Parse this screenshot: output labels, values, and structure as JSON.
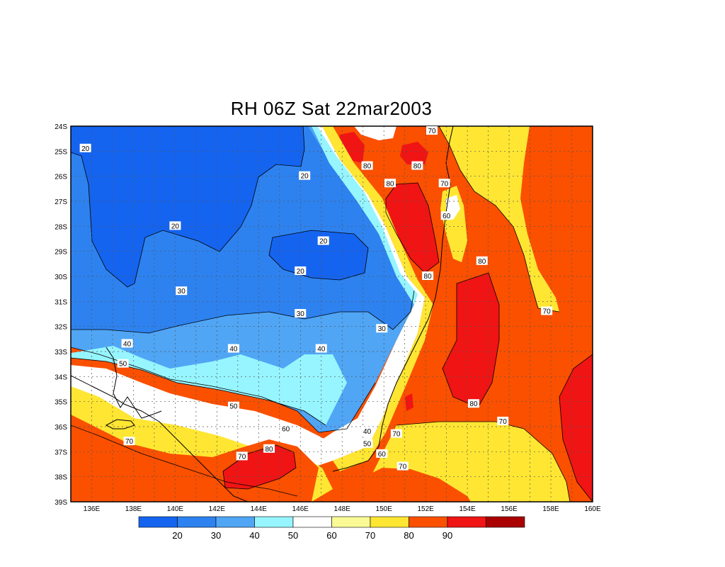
{
  "title": "RH 06Z Sat 22mar2003",
  "lat_labels": [
    "24S",
    "25S",
    "26S",
    "27S",
    "28S",
    "29S",
    "30S",
    "31S",
    "32S",
    "33S",
    "34S",
    "35S",
    "36S",
    "37S",
    "38S",
    "39S"
  ],
  "lon_labels": [
    "136E",
    "138E",
    "140E",
    "142E",
    "144E",
    "146E",
    "148E",
    "150E",
    "152E",
    "154E",
    "156E",
    "158E",
    "160E"
  ],
  "colorbar": {
    "colors": [
      "#1464f0",
      "#2d82f0",
      "#50a5f5",
      "#96f5ff",
      "#ffffff",
      "#fafa96",
      "#ffe632",
      "#fa5000",
      "#f01414",
      "#aa0000"
    ],
    "tick_labels": [
      "20",
      "30",
      "40",
      "50",
      "60",
      "70",
      "80",
      "90"
    ]
  },
  "contour_labels": [
    {
      "text": "20",
      "lon": 135.7,
      "lat": -24.9
    },
    {
      "text": "20",
      "lon": 146.2,
      "lat": -26.0
    },
    {
      "text": "20",
      "lon": 140.0,
      "lat": -28.0
    },
    {
      "text": "20",
      "lon": 147.1,
      "lat": -28.6
    },
    {
      "text": "20",
      "lon": 146.0,
      "lat": -29.8
    },
    {
      "text": "30",
      "lon": 140.3,
      "lat": -30.6
    },
    {
      "text": "30",
      "lon": 146.0,
      "lat": -31.5
    },
    {
      "text": "30",
      "lon": 149.9,
      "lat": -32.1
    },
    {
      "text": "40",
      "lon": 137.7,
      "lat": -32.7
    },
    {
      "text": "40",
      "lon": 142.8,
      "lat": -32.9
    },
    {
      "text": "40",
      "lon": 147.0,
      "lat": -32.9
    },
    {
      "text": "40",
      "lon": 149.2,
      "lat": -36.2
    },
    {
      "text": "50",
      "lon": 137.5,
      "lat": -33.5
    },
    {
      "text": "50",
      "lon": 142.8,
      "lat": -35.2
    },
    {
      "text": "50",
      "lon": 149.2,
      "lat": -36.7
    },
    {
      "text": "60",
      "lon": 145.3,
      "lat": -36.1
    },
    {
      "text": "60",
      "lon": 149.9,
      "lat": -37.1
    },
    {
      "text": "60",
      "lon": 153.0,
      "lat": -27.6
    },
    {
      "text": "70",
      "lon": 137.8,
      "lat": -36.6
    },
    {
      "text": "70",
      "lon": 143.2,
      "lat": -37.2
    },
    {
      "text": "70",
      "lon": 150.6,
      "lat": -36.3
    },
    {
      "text": "70",
      "lon": 150.9,
      "lat": -37.6
    },
    {
      "text": "70",
      "lon": 155.7,
      "lat": -35.8
    },
    {
      "text": "70",
      "lon": 157.8,
      "lat": -31.4
    },
    {
      "text": "70",
      "lon": 152.3,
      "lat": -24.2
    },
    {
      "text": "70",
      "lon": 152.9,
      "lat": -26.3
    },
    {
      "text": "80",
      "lon": 149.2,
      "lat": -25.6
    },
    {
      "text": "80",
      "lon": 150.3,
      "lat": -26.3
    },
    {
      "text": "80",
      "lon": 151.6,
      "lat": -25.6
    },
    {
      "text": "80",
      "lon": 144.5,
      "lat": -36.9
    },
    {
      "text": "80",
      "lon": 152.1,
      "lat": -30.0
    },
    {
      "text": "80",
      "lon": 154.7,
      "lat": -29.4
    },
    {
      "text": "80",
      "lon": 154.3,
      "lat": -35.1
    }
  ]
}
